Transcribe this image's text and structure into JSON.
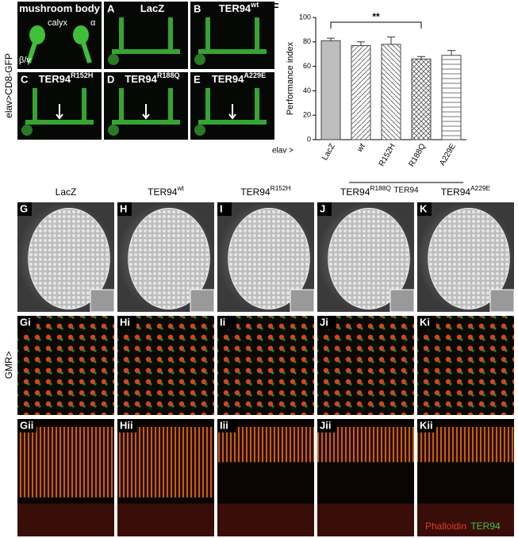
{
  "top_row_label": "elav>CD8-GFP",
  "top_panels": [
    {
      "title": "mushroom body"
    },
    {
      "letter": "A",
      "title": "LacZ"
    },
    {
      "letter": "B",
      "title": "TER94",
      "sup": "wt"
    },
    {
      "letter": "C",
      "title": "TER94",
      "sup": "R152H"
    },
    {
      "letter": "D",
      "title": "TER94",
      "sup": "R188Q"
    },
    {
      "letter": "E",
      "title": "TER94",
      "sup": "A229E"
    }
  ],
  "mushroom_labels": [
    "calyx",
    "α",
    "β/γ"
  ],
  "chart_data": {
    "type": "bar",
    "panel_letter": "F",
    "ylabel": "Performance index",
    "categories": [
      "LacZ",
      "wt",
      "R152H",
      "R188Q",
      "A229E"
    ],
    "values": [
      81,
      77,
      78,
      66,
      69
    ],
    "errors": [
      2,
      3,
      6,
      2,
      4
    ],
    "color": "#bdbdbd",
    "hatches": [
      "none",
      "/",
      "\\",
      "x",
      "-"
    ],
    "ylim": [
      0,
      100
    ],
    "yticks": [
      0,
      20,
      40,
      60,
      80,
      100
    ],
    "x_prefix": "elav >",
    "group_label": "TER94",
    "significance": "**"
  },
  "eye_row_label": "GMR>",
  "eye_columns": [
    {
      "title": "LacZ",
      "letters": [
        "G",
        "Gi",
        "Gii"
      ]
    },
    {
      "title": "TER94",
      "sup": "wt",
      "letters": [
        "H",
        "Hi",
        "Hii"
      ]
    },
    {
      "title": "TER94",
      "sup": "R152H",
      "letters": [
        "I",
        "Ii",
        "Iii"
      ]
    },
    {
      "title": "TER94",
      "sup": "R188Q",
      "letters": [
        "J",
        "Ji",
        "Jii"
      ]
    },
    {
      "title": "TER94",
      "sup": "A229E",
      "letters": [
        "K",
        "Ki",
        "Kii"
      ]
    }
  ],
  "stain_labels": [
    "Phalloidin",
    "TER94"
  ]
}
